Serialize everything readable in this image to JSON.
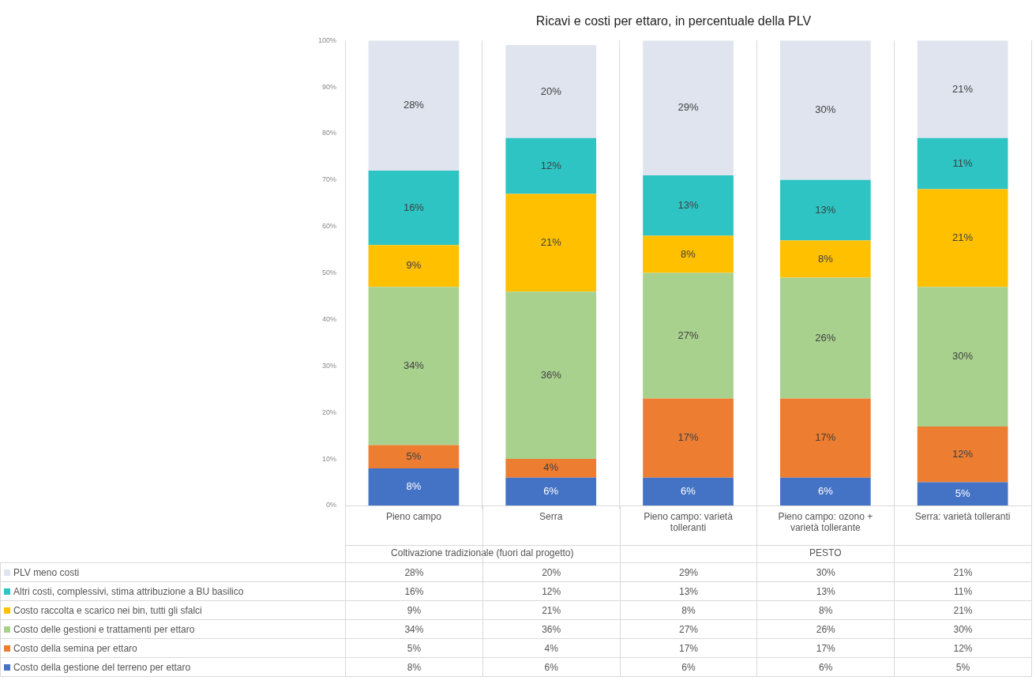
{
  "chart_data": {
    "type": "bar",
    "stacked": true,
    "title": "Ricavi e costi per ettaro, in percentuale della PLV",
    "categories": [
      "Pieno campo",
      "Serra",
      "Pieno campo: varietà tolleranti",
      "Pieno campo: ozono + varietà tollerante",
      "Serra: varietà tolleranti"
    ],
    "annotations": [
      "Coltivazione tradizionale (fuori dal progetto)",
      "PESTO"
    ],
    "ylim": [
      0,
      100
    ],
    "yticks": [
      {
        "value": 0,
        "label": "0%"
      },
      {
        "value": 10,
        "label": "10%"
      },
      {
        "value": 20,
        "label": "20%"
      },
      {
        "value": 30,
        "label": "30%"
      },
      {
        "value": 40,
        "label": "40%"
      },
      {
        "value": 50,
        "label": "50%"
      },
      {
        "value": 60,
        "label": "60%"
      },
      {
        "value": 70,
        "label": "70%"
      },
      {
        "value": 80,
        "label": "80%"
      },
      {
        "value": 90,
        "label": "90%"
      },
      {
        "value": 100,
        "label": "100%"
      }
    ],
    "grid": "x",
    "legend": "bottom",
    "series": [
      {
        "name": "Costo della gestione del terreno per ettaro",
        "color": "#4472c4",
        "values": [
          8,
          6,
          6,
          6,
          5
        ],
        "value_labels": [
          "8%",
          "6%",
          "6%",
          "6%",
          "5%"
        ]
      },
      {
        "name": "Costo della semina per ettaro",
        "color": "#ed7d31",
        "values": [
          5,
          4,
          17,
          17,
          12
        ],
        "value_labels": [
          "5%",
          "4%",
          "17%",
          "17%",
          "12%"
        ]
      },
      {
        "name": "Costo delle gestioni e trattamenti per ettaro",
        "color": "#a9d18e",
        "values": [
          34,
          36,
          27,
          26,
          30
        ],
        "value_labels": [
          "34%",
          "36%",
          "27%",
          "26%",
          "30%"
        ]
      },
      {
        "name": "Costo raccolta e scarico nei bin, tutti gli sfalci",
        "color": "#ffc000",
        "values": [
          9,
          21,
          8,
          8,
          21
        ],
        "value_labels": [
          "9%",
          "21%",
          "8%",
          "8%",
          "21%"
        ]
      },
      {
        "name": "Altri costi, complessivi, stima attribuzione a BU basilico",
        "color": "#2ec4c4",
        "values": [
          16,
          12,
          13,
          13,
          11
        ],
        "value_labels": [
          "16%",
          "12%",
          "13%",
          "13%",
          "11%"
        ]
      },
      {
        "name": "PLV meno costi",
        "color": "#dfe4ee",
        "values": [
          28,
          20,
          29,
          30,
          21
        ],
        "value_labels": [
          "28%",
          "20%",
          "29%",
          "30%",
          "21%"
        ]
      }
    ]
  }
}
